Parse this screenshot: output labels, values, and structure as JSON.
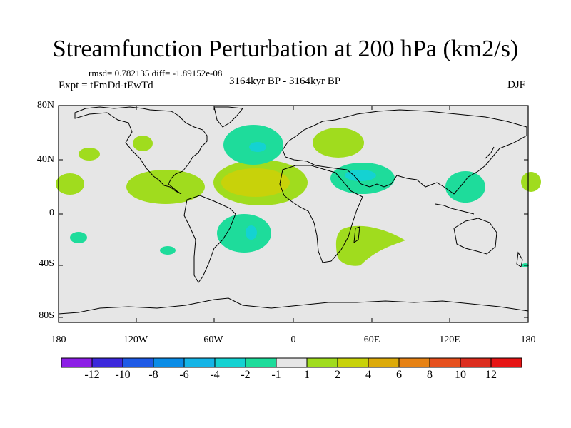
{
  "title": "Streamfunction Perturbation at 200 hPa (km2/s)",
  "stats": "rmsd= 0.782135 diff= -1.89152e-08",
  "experiment": "Expt = tFmDd-tEwTd",
  "period": "3164kyr BP - 3164kyr BP",
  "season": "DJF",
  "axes": {
    "lat_ticks": [
      "80N",
      "40N",
      "0",
      "40S",
      "80S"
    ],
    "lon_ticks": [
      "180",
      "120W",
      "60W",
      "0",
      "60E",
      "120E",
      "180"
    ]
  },
  "colorbar": {
    "labels": [
      "-12",
      "-10",
      "-8",
      "-6",
      "-4",
      "-2",
      "-1",
      "1",
      "2",
      "4",
      "6",
      "8",
      "10",
      "12"
    ],
    "colors": [
      "#8c1ee6",
      "#3c28dc",
      "#1e5ae6",
      "#0a8ce6",
      "#14b4e6",
      "#14d2d2",
      "#1edc9b",
      "#e6e6e6",
      "#a0dc1e",
      "#c8d20a",
      "#dcaa0a",
      "#e68214",
      "#e6501e",
      "#dc2d1e",
      "#e61414"
    ]
  },
  "colors": {
    "ocean": "#e6e6e6",
    "pos1": "#a0dc1e",
    "pos2": "#c8d20a",
    "neg1": "#1edc9b",
    "neg2": "#14d2d2"
  }
}
